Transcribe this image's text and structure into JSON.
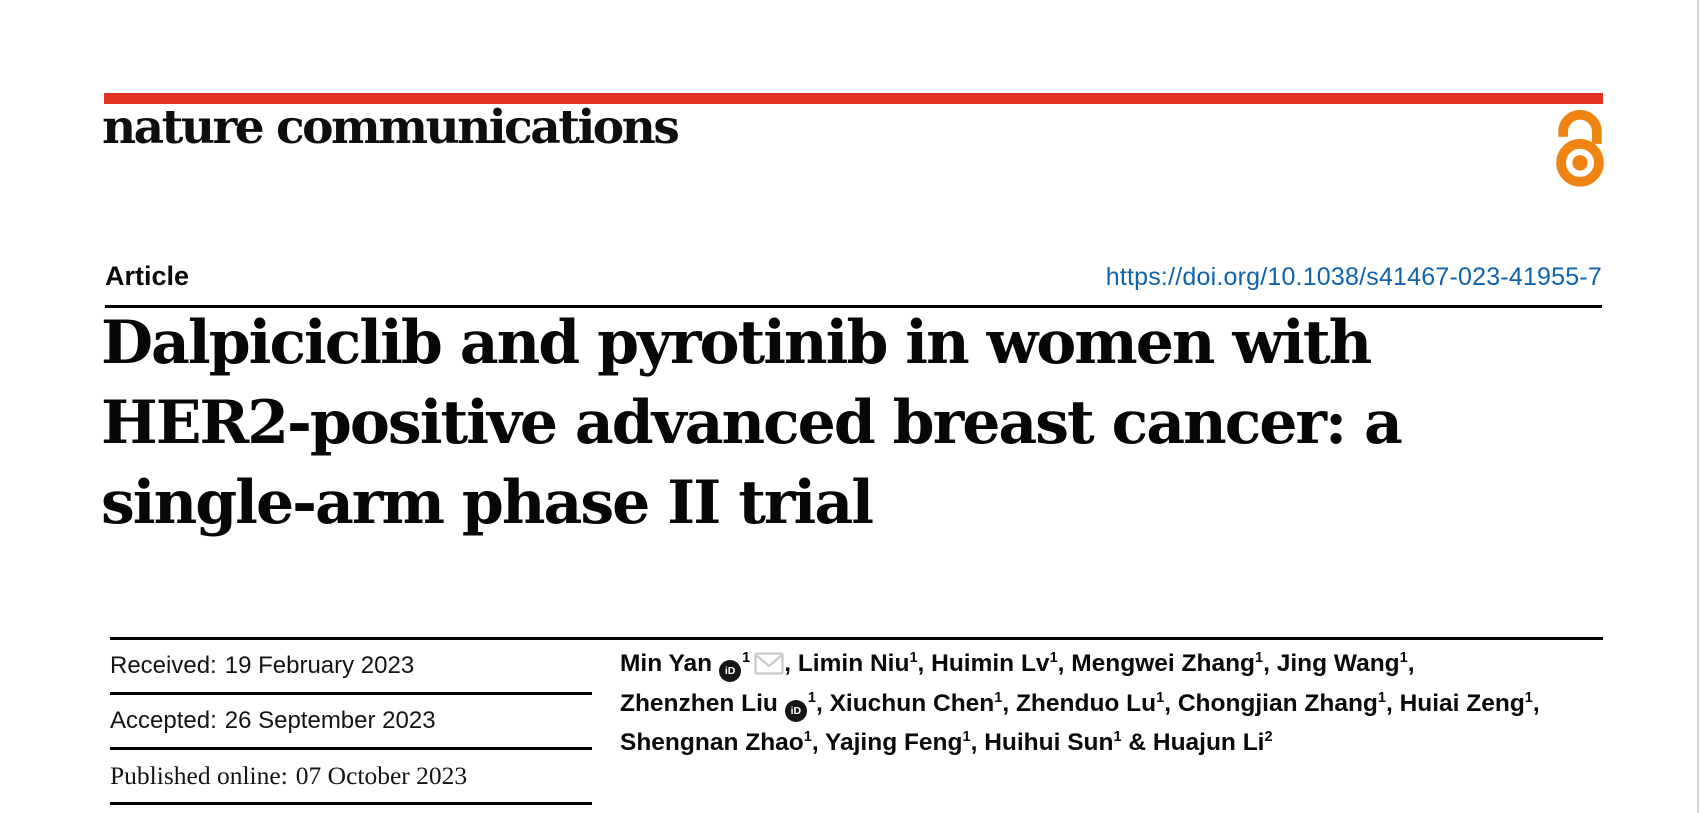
{
  "masthead": {
    "journal": "nature communications",
    "article_type": "Article",
    "doi": "https://doi.org/10.1038/s41467-023-41955-7"
  },
  "title": {
    "lines": [
      "Dalpiciclib and pyrotinib in women with",
      "HER2-positive advanced breast cancer: a",
      "single-arm phase II trial"
    ]
  },
  "dates": {
    "rows": [
      {
        "label": "Received:",
        "value": "19 February 2023",
        "font": "sans"
      },
      {
        "label": "Accepted:",
        "value": "26 September 2023",
        "font": "sans"
      },
      {
        "label": "Published online:",
        "value": "07 October 2023",
        "font": "serif"
      }
    ]
  },
  "authors": {
    "lines": [
      {
        "segments": [
          {
            "text": "Min Yan"
          },
          {
            "icon": "orcid"
          },
          {
            "sup": "1"
          },
          {
            "icon": "envelope"
          },
          {
            "text": ", Limin Niu"
          },
          {
            "sup": "1"
          },
          {
            "text": ", Huimin Lv"
          },
          {
            "sup": "1"
          },
          {
            "text": ", Mengwei Zhang"
          },
          {
            "sup": "1"
          },
          {
            "text": ", Jing Wang"
          },
          {
            "sup": "1"
          },
          {
            "text": ","
          }
        ]
      },
      {
        "segments": [
          {
            "text": "Zhenzhen Liu"
          },
          {
            "icon": "orcid"
          },
          {
            "sup": "1"
          },
          {
            "text": ", Xiuchun Chen"
          },
          {
            "sup": "1"
          },
          {
            "text": ", Zhenduo Lu"
          },
          {
            "sup": "1"
          },
          {
            "text": ", Chongjian Zhang"
          },
          {
            "sup": "1"
          },
          {
            "text": ", Huiai Zeng"
          },
          {
            "sup": "1"
          },
          {
            "text": ","
          }
        ]
      },
      {
        "segments": [
          {
            "text": "Shengnan Zhao"
          },
          {
            "sup": "1"
          },
          {
            "text": ", Yajing Feng"
          },
          {
            "sup": "1"
          },
          {
            "text": ", Huihui Sun"
          },
          {
            "sup": "1"
          },
          {
            "text": " & Huajun Li"
          },
          {
            "sup": "2"
          }
        ]
      }
    ]
  },
  "icons": {
    "orcid_text": "iD",
    "open_access": "open-access-icon",
    "envelope": "envelope-icon"
  },
  "colors": {
    "brand_red": "#e33324",
    "link_blue": "#0f63ac",
    "oa_orange": "#ef8412",
    "envelope_gray": "#c9c9c9",
    "rule_black": "#000000"
  }
}
